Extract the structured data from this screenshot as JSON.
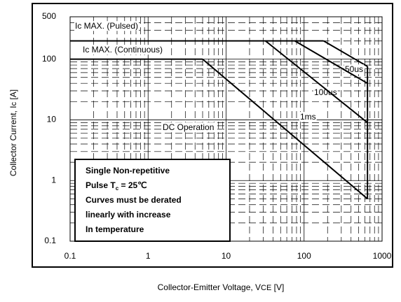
{
  "chart_data": {
    "type": "line",
    "xlabel": [
      "Collector-Emitter Voltage, V",
      "CE",
      "  [V]"
    ],
    "ylabel": [
      "Collector Current, I",
      "c",
      "  [A]"
    ],
    "xlog": true,
    "ylog": true,
    "grid": true,
    "xlim": [
      0.1,
      1000
    ],
    "xticks": [
      0.1,
      1,
      10,
      100,
      1000
    ],
    "ylim": [
      0.1,
      500
    ],
    "yticks": [
      0.1,
      1,
      10,
      100,
      500
    ],
    "color": "#000000",
    "series": [
      {
        "name": "Ic MAX. (Pulsed)",
        "x": [
          0.1,
          178
        ],
        "values": [
          200,
          200
        ]
      },
      {
        "name": "50us",
        "x": [
          178,
          650
        ],
        "values": [
          200,
          76
        ]
      },
      {
        "name": "100us",
        "x": [
          76,
          650
        ],
        "values": [
          200,
          40
        ]
      },
      {
        "name": "1ms",
        "x": [
          32,
          650
        ],
        "values": [
          200,
          9
        ]
      },
      {
        "name": "Ic MAX. (Continuous)",
        "x": [
          0.1,
          5
        ],
        "values": [
          100,
          100
        ]
      },
      {
        "name": "DC Operation",
        "x": [
          5,
          650
        ],
        "values": [
          100,
          0.5
        ]
      },
      {
        "x": [
          650,
          650
        ],
        "values": [
          76,
          0.5
        ]
      }
    ],
    "note": [
      [
        "Single Non-repetitive"
      ],
      [
        "Pulse T",
        "c",
        " = 25℃"
      ],
      [
        "Curves must be derated"
      ],
      [
        "linearly with increase"
      ],
      [
        "In temperature"
      ]
    ]
  }
}
